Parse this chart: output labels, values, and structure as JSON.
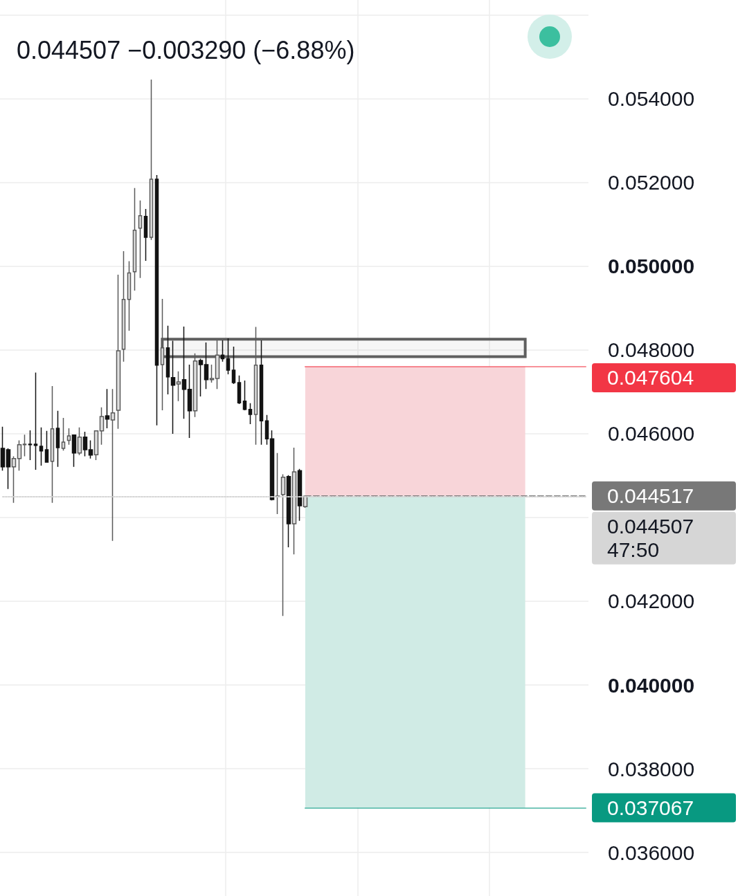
{
  "chart_data": {
    "type": "candlestick",
    "annotations": [
      "0.044507 −0.003290 (−6.88%)"
    ],
    "categories": [
      null,
      null,
      null,
      null,
      null,
      null,
      null,
      null,
      null,
      null,
      null,
      null,
      null,
      null,
      null,
      null,
      null,
      null,
      null,
      null,
      null,
      null,
      null,
      null,
      null,
      null,
      null,
      null,
      null,
      null,
      null,
      null,
      null,
      null,
      null,
      null,
      null,
      null,
      null,
      null,
      null,
      null,
      null,
      null,
      null,
      null,
      null,
      null,
      null,
      null,
      null,
      null,
      null,
      null,
      null,
      null,
      null,
      null,
      null,
      null,
      null,
      null,
      null,
      null,
      null,
      null,
      null,
      null,
      null,
      null,
      null,
      null,
      null,
      null,
      null,
      null,
      null,
      null,
      null,
      null,
      null,
      null,
      null,
      null,
      null,
      null,
      null,
      null,
      null,
      null,
      null,
      null,
      null,
      null,
      null,
      null,
      null,
      null,
      null,
      null,
      null,
      null,
      null,
      null,
      null,
      null,
      null
    ],
    "ohlc": [
      [
        0.04565,
        0.04617,
        0.04512,
        0.04521
      ],
      [
        0.04562,
        0.04565,
        0.04468,
        0.04521
      ],
      [
        0.04521,
        0.04546,
        0.04435,
        0.04541
      ],
      [
        0.04541,
        0.04584,
        0.04512,
        0.04574
      ],
      [
        0.04574,
        0.04598,
        0.04546,
        0.04575
      ],
      [
        0.04575,
        0.04608,
        0.04537,
        0.04574
      ],
      [
        0.04575,
        0.04746,
        0.04514,
        0.04572
      ],
      [
        0.0457,
        0.04615,
        0.04524,
        0.04559
      ],
      [
        0.04562,
        0.04607,
        0.04532,
        0.04532
      ],
      [
        0.04534,
        0.04714,
        0.04435,
        0.04612
      ],
      [
        0.04613,
        0.04655,
        0.04521,
        0.04567
      ],
      [
        0.04565,
        0.04638,
        0.0456,
        0.0458
      ],
      [
        0.04584,
        0.04613,
        0.04574,
        0.04595
      ],
      [
        0.04597,
        0.04598,
        0.04521,
        0.04554
      ],
      [
        0.04554,
        0.04615,
        0.04549,
        0.04592
      ],
      [
        0.04592,
        0.04605,
        0.04546,
        0.04562
      ],
      [
        0.04562,
        0.04584,
        0.04541,
        0.04549
      ],
      [
        0.0455,
        0.04608,
        0.04537,
        0.04607
      ],
      [
        0.04607,
        0.04663,
        0.04574,
        0.04641
      ],
      [
        0.04643,
        0.04707,
        0.04613,
        0.04635
      ],
      [
        0.04633,
        0.04707,
        0.04344,
        0.0465
      ],
      [
        0.04656,
        0.0498,
        0.04612,
        0.04798
      ],
      [
        0.04802,
        0.05036,
        0.04772,
        0.04921
      ],
      [
        0.04921,
        0.05012,
        0.04846,
        0.04984
      ],
      [
        0.04987,
        0.05187,
        0.04942,
        0.05086
      ],
      [
        0.05091,
        0.05157,
        0.04972,
        0.05121
      ],
      [
        0.05119,
        0.05137,
        0.05013,
        0.05069
      ],
      [
        0.05069,
        0.05446,
        0.05063,
        0.05208
      ],
      [
        0.05208,
        0.05218,
        0.0462,
        0.04764
      ],
      [
        0.04765,
        0.04922,
        0.04656,
        0.04805
      ],
      [
        0.04805,
        0.04858,
        0.04694,
        0.04736
      ],
      [
        0.04734,
        0.04822,
        0.046,
        0.04716
      ],
      [
        0.04719,
        0.04749,
        0.04678,
        0.04724
      ],
      [
        0.04729,
        0.04856,
        0.04636,
        0.04706
      ],
      [
        0.04706,
        0.04765,
        0.0459,
        0.04655
      ],
      [
        0.04655,
        0.04792,
        0.0464,
        0.04774
      ],
      [
        0.04775,
        0.04779,
        0.04689,
        0.04765
      ],
      [
        0.04765,
        0.04818,
        0.04707,
        0.04729
      ],
      [
        0.04729,
        0.04765,
        0.04722,
        0.04732
      ],
      [
        0.04732,
        0.04823,
        0.04707,
        0.04788
      ],
      [
        0.04788,
        0.04823,
        0.04772,
        0.04779
      ],
      [
        0.04779,
        0.04828,
        0.04742,
        0.04752
      ],
      [
        0.04752,
        0.04808,
        0.04719,
        0.04722
      ],
      [
        0.04722,
        0.04739,
        0.04671,
        0.04674
      ],
      [
        0.04678,
        0.04727,
        0.04656,
        0.04658
      ],
      [
        0.04658,
        0.04673,
        0.04623,
        0.04646
      ],
      [
        0.04646,
        0.04855,
        0.04574,
        0.04764
      ],
      [
        0.04764,
        0.04823,
        0.04574,
        0.04631
      ],
      [
        0.04631,
        0.04645,
        0.04574,
        0.04588
      ],
      [
        0.04588,
        0.04608,
        0.04441,
        0.04443
      ],
      [
        0.0445,
        0.04554,
        0.04408,
        0.04451
      ],
      [
        0.04455,
        0.04503,
        0.04165,
        0.04496
      ],
      [
        0.04498,
        0.04501,
        0.04329,
        0.04385
      ],
      [
        0.04385,
        0.04567,
        0.04312,
        0.04509
      ],
      [
        0.04512,
        0.04516,
        0.04392,
        0.04428
      ],
      [
        0.04426,
        0.04453,
        0.04423,
        0.044507
      ],
      null,
      null,
      null,
      null,
      null,
      null,
      null,
      null,
      null,
      null,
      null,
      null,
      null,
      null,
      null,
      null,
      null,
      null,
      null,
      null,
      null,
      null,
      null,
      null,
      null,
      null,
      null,
      null,
      null,
      null,
      null,
      null,
      null,
      null,
      null,
      null,
      null,
      null,
      null,
      null,
      null,
      null,
      null,
      null,
      null,
      null,
      null,
      null,
      null,
      null,
      null
    ],
    "colors": [
      "#131313",
      "#131313",
      "#e0e0e0",
      "#e0e0e0",
      "#e0e0e0",
      "#131313",
      "#131313",
      "#131313",
      "#131313",
      "#e0e0e0",
      "#131313",
      "#e0e0e0",
      "#e0e0e0",
      "#131313",
      "#e0e0e0",
      "#131313",
      "#131313",
      "#e0e0e0",
      "#e0e0e0",
      "#131313",
      "#e0e0e0",
      "#e0e0e0",
      "#e0e0e0",
      "#e0e0e0",
      "#e0e0e0",
      "#e0e0e0",
      "#131313",
      "#e0e0e0",
      "#131313",
      "#e0e0e0",
      "#131313",
      "#131313",
      "#e0e0e0",
      "#131313",
      "#131313",
      "#e0e0e0",
      "#131313",
      "#131313",
      "#e0e0e0",
      "#e0e0e0",
      "#131313",
      "#131313",
      "#131313",
      "#131313",
      "#131313",
      "#131313",
      "#e0e0e0",
      "#131313",
      "#131313",
      "#131313",
      "#e0e0e0",
      "#e0e0e0",
      "#131313",
      "#e0e0e0",
      "#131313",
      "#e0e0e0",
      null,
      null,
      null,
      null,
      null,
      null,
      null,
      null,
      null,
      null,
      null,
      null,
      null,
      null,
      null,
      null,
      null,
      null,
      null,
      null,
      null,
      null,
      null,
      null,
      null,
      null,
      null,
      null,
      null,
      null,
      null,
      null,
      null,
      null,
      null,
      null,
      null,
      null,
      null,
      null,
      null,
      null,
      null,
      null,
      null,
      null,
      null,
      null,
      null,
      null,
      null
    ],
    "ylim": [
      0.03496,
      0.05636
    ],
    "yticks": [
      {
        "value": 0.036,
        "label": "0.036000"
      },
      {
        "value": 0.038,
        "label": "0.038000"
      },
      {
        "value": 0.04,
        "label": "0.040000"
      },
      {
        "value": 0.042,
        "label": "0.042000"
      },
      {
        "value": 0.044,
        "label": null
      },
      {
        "value": 0.046,
        "label": "0.046000"
      },
      {
        "value": 0.048,
        "label": "0.048000"
      },
      {
        "value": 0.05,
        "label": "0.050000"
      },
      {
        "value": 0.052,
        "label": "0.052000"
      },
      {
        "value": 0.054,
        "label": "0.054000"
      },
      {
        "value": 0.056,
        "label": null
      }
    ],
    "tick_labels": "y",
    "grid": true,
    "bands": [
      {
        "axis": "y",
        "from": 0.04784,
        "to": 0.04826,
        "color": "#5f5f5f"
      },
      {
        "axis": "y",
        "from": 0.044517,
        "to": 0.047604,
        "color": "#f8d5d9"
      },
      {
        "axis": "y",
        "from": 0.037067,
        "to": 0.044517,
        "color": "#d0ebe5"
      }
    ],
    "ref_lines": [
      {
        "axis": "y",
        "value": 0.047604,
        "label": "0.047604",
        "color": "#f23645"
      },
      {
        "axis": "y",
        "value": 0.044517,
        "label": "0.044517",
        "color": "#787878",
        "line_style": "dashed"
      },
      {
        "axis": "y",
        "value": 0.044507,
        "label": "0.044507\n47:50",
        "color": "#d6d6d6",
        "line_style": "dotted"
      },
      {
        "axis": "y",
        "value": 0.037067,
        "label": "0.037067",
        "color": "#089981"
      }
    ]
  }
}
